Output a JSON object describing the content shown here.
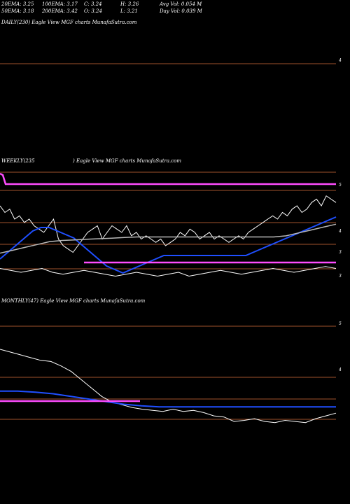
{
  "header": {
    "row1": [
      "20EMA: 3.25",
      "100EMA: 3.17",
      "C: 3.24",
      "H: 3.26",
      "Avg Vol: 0.054  M"
    ],
    "row2": [
      "50EMA: 3.18",
      "200EMA: 3.42",
      "O: 3.24",
      "L: 3.21",
      "Day Vol: 0.039 M"
    ]
  },
  "colors": {
    "background": "#000000",
    "price": "#ffffff",
    "ema_blue": "#1f4fff",
    "ema_magenta": "#ff4cff",
    "ema_gray": "#b8b8b8",
    "level_line": "#a0522d"
  },
  "chart_data": [
    {
      "type": "line",
      "title": "DAILY(230) Eagle  View  MGF charts MunafaSutra.com",
      "yticks": [
        "4"
      ],
      "series": []
    },
    {
      "type": "line",
      "title": "WEEKLY(235",
      "title2": ") Eagle  View  MGF charts MunafaSutra.com",
      "yticks": [
        "5",
        "4",
        "3",
        "3"
      ],
      "series": [
        {
          "role": "price",
          "values": [
            4.2,
            4.1,
            4.15,
            4.0,
            4.05,
            3.95,
            4.0,
            3.9,
            3.85,
            3.8,
            3.9,
            4.0,
            3.7,
            3.6,
            3.55,
            3.5,
            3.6,
            3.7,
            3.8,
            3.85,
            3.9,
            3.7,
            3.8,
            3.9,
            3.85,
            3.8,
            3.9,
            3.75,
            3.8,
            3.7,
            3.75,
            3.7,
            3.65,
            3.7,
            3.6,
            3.65,
            3.7,
            3.8,
            3.75,
            3.85,
            3.8,
            3.7,
            3.75,
            3.8,
            3.7,
            3.75,
            3.7,
            3.65,
            3.7,
            3.75,
            3.7,
            3.8,
            3.85,
            3.9,
            3.95,
            4.0,
            4.05,
            4.0,
            4.1,
            4.05,
            4.15,
            4.2,
            4.1,
            4.15,
            4.25,
            4.3,
            4.2,
            4.35,
            4.3,
            4.25
          ]
        },
        {
          "role": "ema_blue",
          "values": [
            3.5,
            3.6,
            3.7,
            3.8,
            3.9,
            3.95,
            3.95,
            3.9,
            3.85,
            3.8,
            3.7,
            3.6,
            3.5,
            3.4,
            3.35,
            3.3,
            3.35,
            3.4,
            3.45,
            3.5,
            3.55,
            3.55,
            3.55,
            3.55,
            3.55,
            3.55,
            3.55,
            3.55,
            3.55,
            3.55,
            3.55,
            3.6,
            3.65,
            3.7,
            3.75,
            3.8,
            3.85,
            3.9,
            3.95,
            4.0,
            4.05,
            4.1
          ]
        },
        {
          "role": "ema_gray",
          "values": [
            3.5,
            3.55,
            3.6,
            3.65,
            3.7,
            3.72,
            3.73,
            3.74,
            3.75,
            3.76,
            3.77,
            3.78,
            3.78,
            3.78,
            3.78,
            3.78,
            3.78,
            3.78,
            3.78,
            3.78,
            3.78,
            3.78,
            3.78,
            3.8,
            3.85,
            3.9,
            3.95,
            4.0
          ]
        },
        {
          "role": "ema_magenta",
          "values": [
            3.2,
            3.2,
            3.2,
            3.2,
            3.2,
            3.2,
            3.2,
            3.2,
            3.2,
            3.2,
            3.2,
            3.2,
            3.2,
            3.2
          ]
        },
        {
          "role": "price_lower",
          "values": [
            3.2,
            3.15,
            3.1,
            3.15,
            3.2,
            3.1,
            3.05,
            3.1,
            3.15,
            3.1,
            3.05,
            3.0,
            3.05,
            3.1,
            3.05,
            3.0,
            3.05,
            3.1,
            3.0,
            3.05,
            3.1,
            3.15,
            3.1,
            3.05,
            3.1,
            3.15,
            3.2,
            3.15,
            3.1,
            3.15,
            3.2,
            3.25,
            3.2
          ]
        }
      ]
    },
    {
      "type": "line",
      "title": "MONTHLY(47) Eagle  View  MGF charts MunafaSutra.com",
      "yticks": [
        "5",
        "4"
      ],
      "series": [
        {
          "role": "price",
          "values": [
            4.9,
            4.85,
            4.8,
            4.75,
            4.7,
            4.68,
            4.6,
            4.5,
            4.35,
            4.2,
            4.05,
            3.95,
            3.9,
            3.85,
            3.82,
            3.8,
            3.78,
            3.82,
            3.78,
            3.8,
            3.76,
            3.7,
            3.68,
            3.6,
            3.62,
            3.65,
            3.6,
            3.58,
            3.62,
            3.6,
            3.58,
            3.65,
            3.7,
            3.75
          ]
        },
        {
          "role": "ema_blue",
          "values": [
            4.2,
            4.2,
            4.18,
            4.15,
            4.1,
            4.05,
            4.0,
            3.95,
            3.92,
            3.9,
            3.9,
            3.9,
            3.9,
            3.9,
            3.9,
            3.9,
            3.9,
            3.9,
            3.9,
            3.9
          ]
        },
        {
          "role": "ema_magenta",
          "values": [
            3.95,
            3.95,
            3.95,
            3.95,
            3.95,
            3.95,
            3.95,
            3.95,
            3.95,
            3.95,
            3.95,
            3.95,
            3.95,
            3.95
          ]
        }
      ]
    }
  ]
}
